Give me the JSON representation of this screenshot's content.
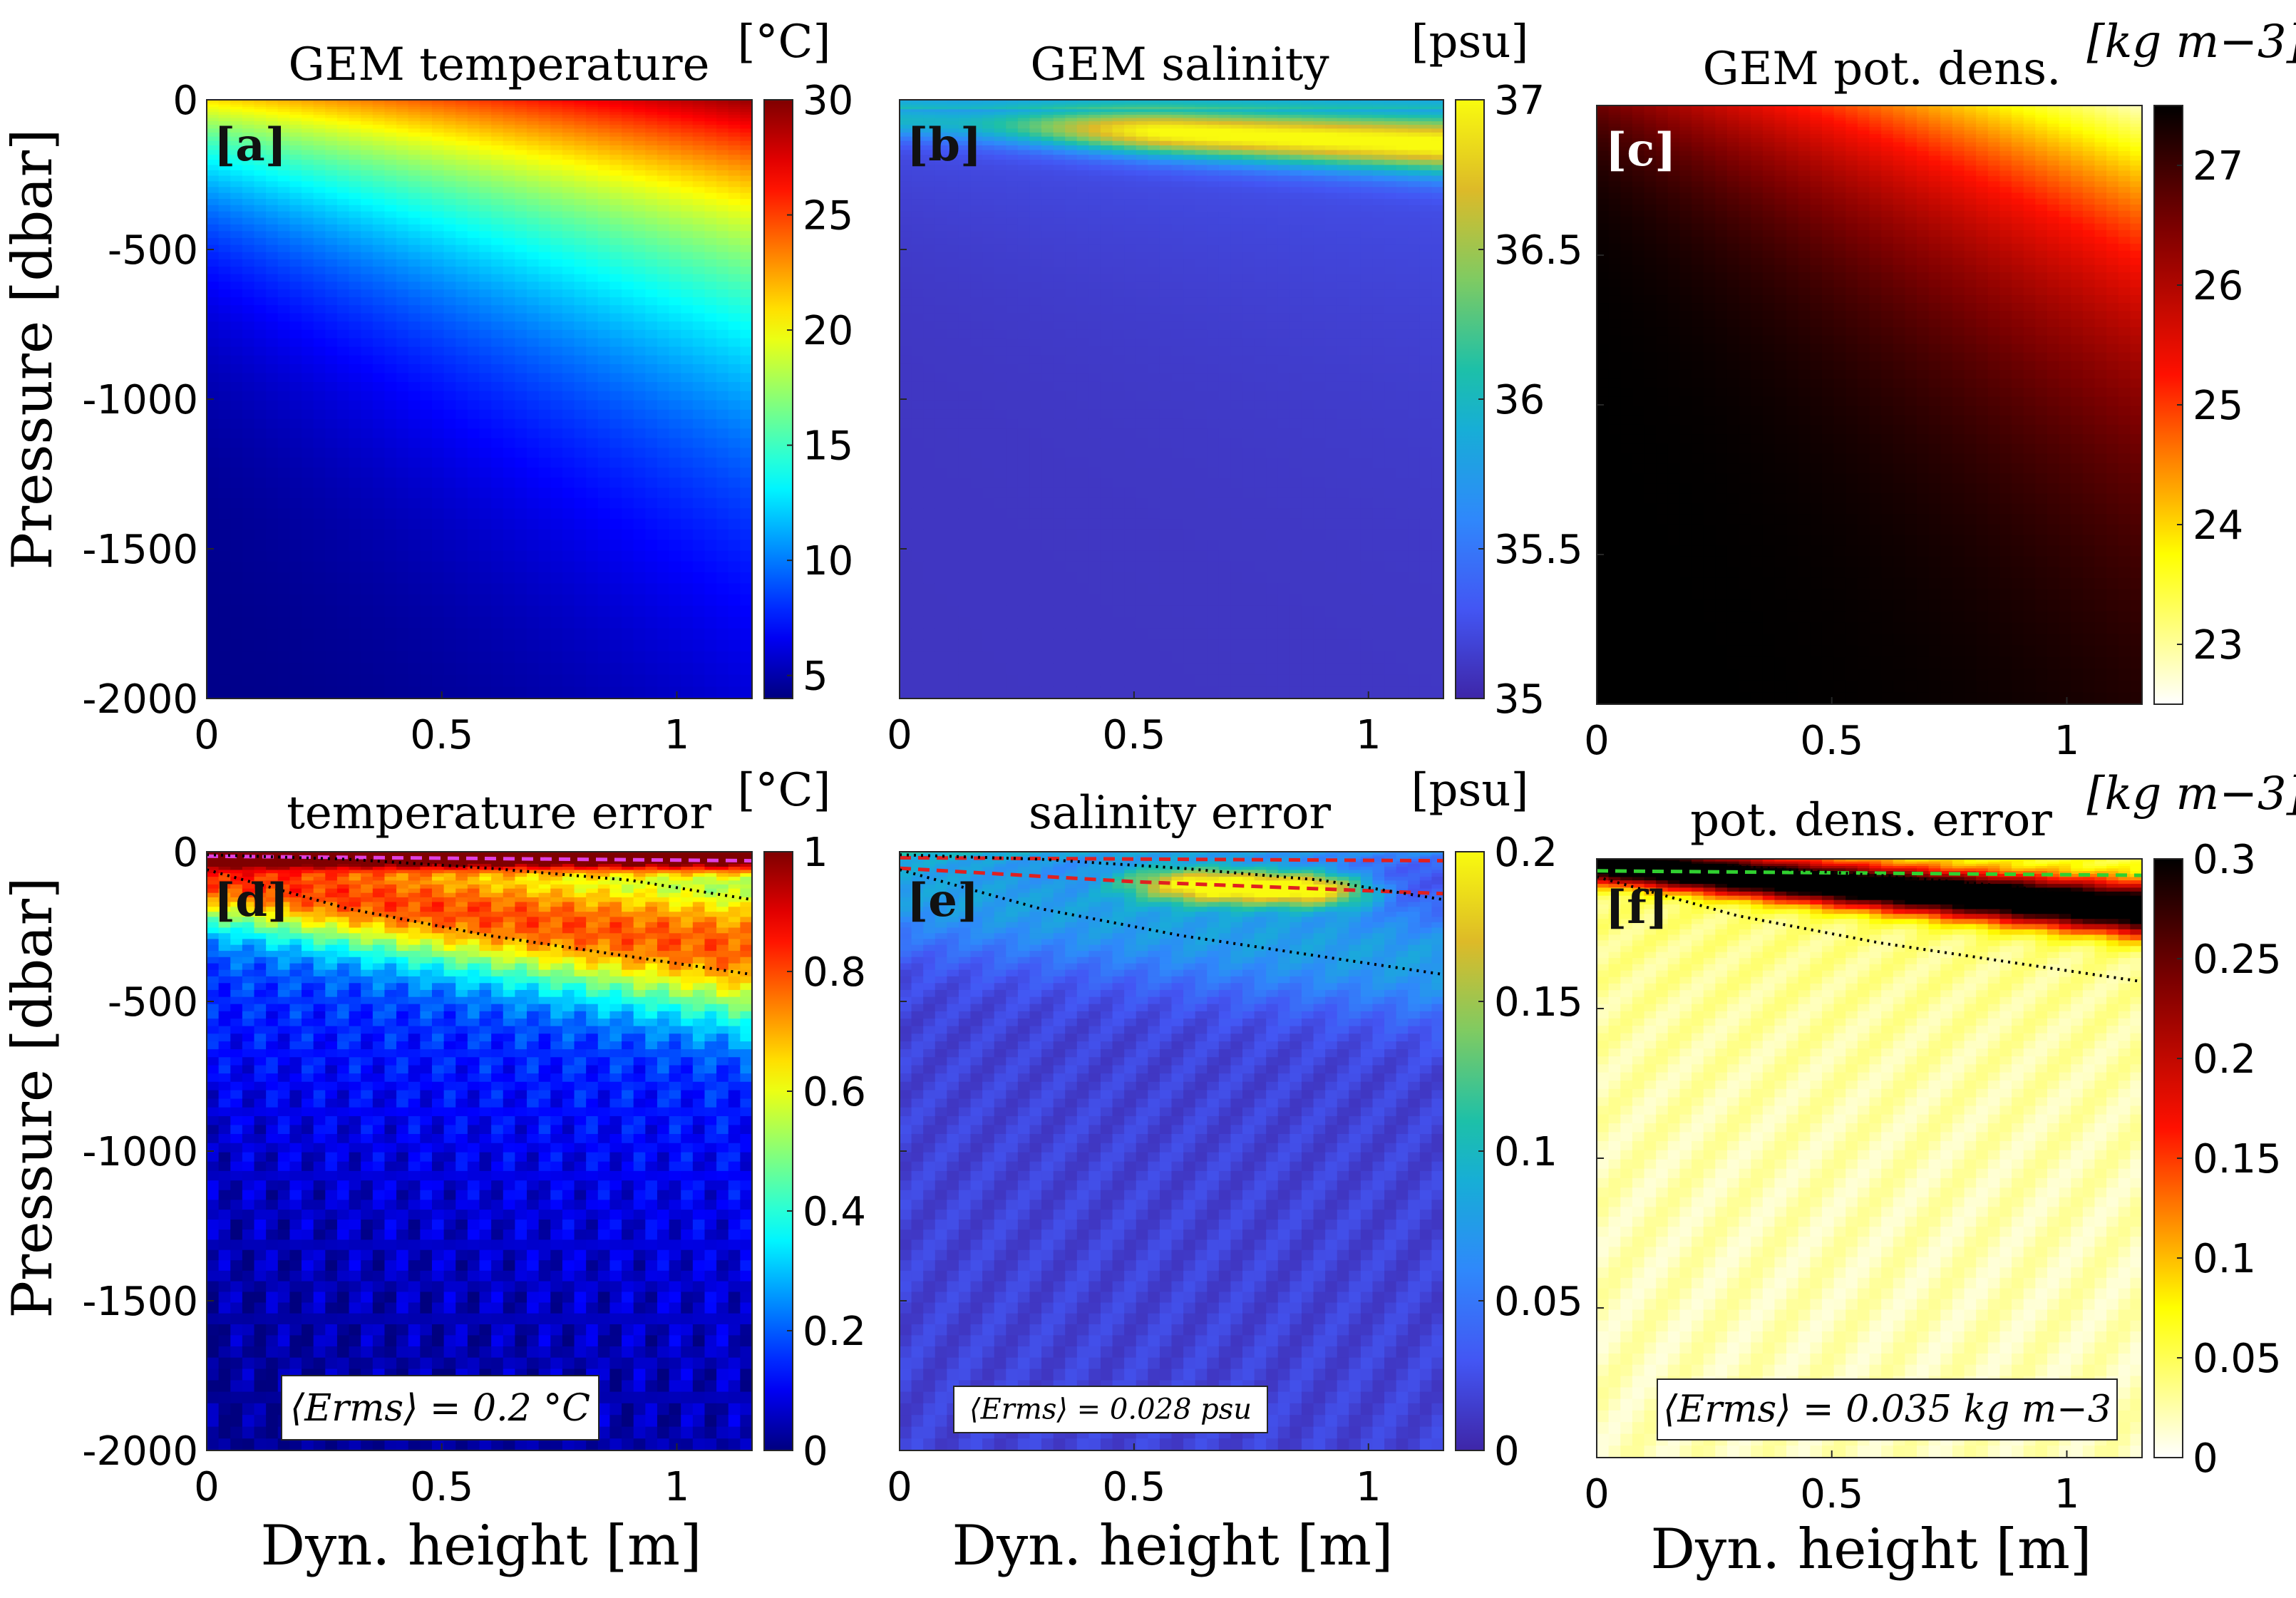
{
  "figure": {
    "shared_ylabel": "Pressure [dbar]",
    "shared_xlabel": "Dyn. height [m]"
  },
  "chart_data": [
    {
      "id": "a",
      "type": "heatmap",
      "panel_label": "[a]",
      "title": "GEM temperature",
      "unit": "[°C]",
      "xlabel": "",
      "ylabel": "Pressure [dbar]",
      "xlim": [
        0,
        1.16
      ],
      "ylim": [
        -2000,
        0
      ],
      "xticks": [
        "0",
        "0.5",
        "1"
      ],
      "xtick_values": [
        0,
        0.5,
        1
      ],
      "yticks": [
        "0",
        "-500",
        "-1000",
        "-1500",
        "-2000"
      ],
      "ytick_values": [
        0,
        -500,
        -1000,
        -1500,
        -2000
      ],
      "colormap": "jet",
      "clim": [
        4,
        30
      ],
      "cbar_ticks": [
        "5",
        "10",
        "15",
        "20",
        "25",
        "30"
      ],
      "cbar_values": [
        5,
        10,
        15,
        20,
        25,
        30
      ],
      "field": "temperature",
      "surface_value": [
        21,
        30
      ],
      "deep_value": 4,
      "contour_lines": [],
      "annotation": ""
    },
    {
      "id": "b",
      "type": "heatmap",
      "panel_label": "[b]",
      "title": "GEM salinity",
      "unit": "[psu]",
      "xlabel": "",
      "ylabel": "",
      "xlim": [
        0,
        1.16
      ],
      "ylim": [
        -2000,
        0
      ],
      "xticks": [
        "0",
        "0.5",
        "1"
      ],
      "xtick_values": [
        0,
        0.5,
        1
      ],
      "yticks": [],
      "ytick_values": [],
      "colormap": "parula",
      "clim": [
        35,
        37
      ],
      "cbar_ticks": [
        "35",
        "35.5",
        "36",
        "36.5",
        "37"
      ],
      "cbar_values": [
        35,
        35.5,
        36,
        36.5,
        37
      ],
      "field": "salinity",
      "contour_lines": [],
      "annotation": ""
    },
    {
      "id": "c",
      "type": "heatmap",
      "panel_label": "[c]",
      "title": "GEM pot. dens.",
      "unit": "[kg m−3]",
      "xlabel": "",
      "ylabel": "",
      "xlim": [
        0,
        1.16
      ],
      "ylim": [
        -2000,
        0
      ],
      "xticks": [
        "0",
        "0.5",
        "1"
      ],
      "xtick_values": [
        0,
        0.5,
        1
      ],
      "yticks": [],
      "ytick_values": [],
      "colormap": "hot_reversed",
      "clim": [
        22.5,
        27.5
      ],
      "cbar_ticks": [
        "23",
        "24",
        "25",
        "26",
        "27"
      ],
      "cbar_values": [
        23,
        24,
        25,
        26,
        27
      ],
      "field": "density",
      "contour_lines": [],
      "annotation": ""
    },
    {
      "id": "d",
      "type": "heatmap",
      "panel_label": "[d]",
      "title": "temperature error",
      "unit": "[°C]",
      "xlabel": "Dyn. height [m]",
      "ylabel": "Pressure [dbar]",
      "xlim": [
        0,
        1.16
      ],
      "ylim": [
        -2000,
        0
      ],
      "xticks": [
        "0",
        "0.5",
        "1"
      ],
      "xtick_values": [
        0,
        0.5,
        1
      ],
      "yticks": [
        "0",
        "-500",
        "-1000",
        "-1500",
        "-2000"
      ],
      "ytick_values": [
        0,
        -500,
        -1000,
        -1500,
        -2000
      ],
      "colormap": "jet",
      "clim": [
        0,
        1
      ],
      "cbar_ticks": [
        "0",
        "0.2",
        "0.4",
        "0.6",
        "0.8",
        "1"
      ],
      "cbar_values": [
        0,
        0.2,
        0.4,
        0.6,
        0.8,
        1
      ],
      "field": "temperature_error",
      "contour_lines": [
        {
          "name": "mixed-layer",
          "style": "dashed",
          "color": "#e040e0",
          "x": [
            0,
            1.16
          ],
          "y": [
            -15,
            -30
          ]
        },
        {
          "name": "upper-isopycnal",
          "style": "dotted",
          "color": "#000000",
          "x": [
            0,
            0.3,
            0.6,
            0.9,
            1.16
          ],
          "y": [
            -10,
            -25,
            -55,
            -95,
            -160
          ]
        },
        {
          "name": "lower-isopycnal",
          "style": "dotted",
          "color": "#000000",
          "x": [
            0,
            0.3,
            0.6,
            0.9,
            1.16
          ],
          "y": [
            -60,
            -190,
            -280,
            -350,
            -410
          ]
        }
      ],
      "annotation": "⟨Erms⟩ = 0.2 °C"
    },
    {
      "id": "e",
      "type": "heatmap",
      "panel_label": "[e]",
      "title": "salinity error",
      "unit": "[psu]",
      "xlabel": "Dyn. height [m]",
      "ylabel": "",
      "xlim": [
        0,
        1.16
      ],
      "ylim": [
        -2000,
        0
      ],
      "xticks": [
        "0",
        "0.5",
        "1"
      ],
      "xtick_values": [
        0,
        0.5,
        1
      ],
      "yticks": [],
      "ytick_values": [],
      "colormap": "parula",
      "clim": [
        0,
        0.2
      ],
      "cbar_ticks": [
        "0",
        "0.05",
        "0.1",
        "0.15",
        "0.2"
      ],
      "cbar_values": [
        0,
        0.05,
        0.1,
        0.15,
        0.2
      ],
      "field": "salinity_error",
      "contour_lines": [
        {
          "name": "mixed-layer-upper",
          "style": "dashed",
          "color": "#e02020",
          "x": [
            0,
            1.16
          ],
          "y": [
            -20,
            -30
          ]
        },
        {
          "name": "mixed-layer-lower",
          "style": "dashed",
          "color": "#e02020",
          "x": [
            0,
            0.5,
            1.16
          ],
          "y": [
            -55,
            -100,
            -140
          ]
        },
        {
          "name": "upper-isopycnal",
          "style": "dotted",
          "color": "#000000",
          "x": [
            0,
            0.3,
            0.6,
            0.9,
            1.16
          ],
          "y": [
            -10,
            -25,
            -55,
            -95,
            -160
          ]
        },
        {
          "name": "lower-isopycnal",
          "style": "dotted",
          "color": "#000000",
          "x": [
            0,
            0.3,
            0.6,
            0.9,
            1.16
          ],
          "y": [
            -60,
            -190,
            -280,
            -350,
            -410
          ]
        }
      ],
      "annotation": "⟨Erms⟩ = 0.028 psu"
    },
    {
      "id": "f",
      "type": "heatmap",
      "panel_label": "[f]",
      "title": "pot. dens. error",
      "unit": "[kg m−3]",
      "xlabel": "Dyn. height [m]",
      "ylabel": "",
      "xlim": [
        0,
        1.16
      ],
      "ylim": [
        -2000,
        0
      ],
      "xticks": [
        "0",
        "0.5",
        "1"
      ],
      "xtick_values": [
        0,
        0.5,
        1
      ],
      "yticks": [],
      "ytick_values": [],
      "colormap": "hot_reversed",
      "clim": [
        0,
        0.3
      ],
      "cbar_ticks": [
        "0",
        "0.05",
        "0.1",
        "0.15",
        "0.2",
        "0.25",
        "0.3"
      ],
      "cbar_values": [
        0,
        0.05,
        0.1,
        0.15,
        0.2,
        0.25,
        0.3
      ],
      "field": "density_error",
      "contour_lines": [
        {
          "name": "mixed-layer",
          "style": "dashed",
          "color": "#30d030",
          "x": [
            0,
            1.16
          ],
          "y": [
            -40,
            -55
          ]
        },
        {
          "name": "upper-isopycnal",
          "style": "dotted",
          "color": "#000000",
          "x": [
            0,
            0.3,
            0.6,
            0.9,
            1.16
          ],
          "y": [
            -10,
            -25,
            -55,
            -95,
            -160
          ]
        },
        {
          "name": "lower-isopycnal",
          "style": "dotted",
          "color": "#000000",
          "x": [
            0,
            0.3,
            0.6,
            0.9,
            1.16
          ],
          "y": [
            -60,
            -190,
            -280,
            -350,
            -410
          ]
        }
      ],
      "annotation": "⟨Erms⟩ = 0.035 kg m−3"
    }
  ]
}
